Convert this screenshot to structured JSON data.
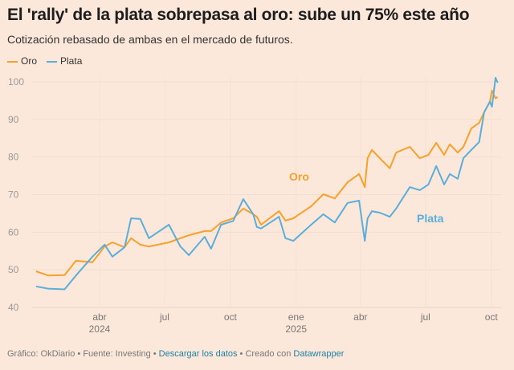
{
  "header": {
    "title": "El 'rally' de la plata sobrepasa al oro: sube un 75% este año",
    "subtitle": "Cotización rebasado de ambas en el mercado de futuros."
  },
  "footer": {
    "source": "Gráfico: OkDiario • Fuente: Investing",
    "sep1": " • ",
    "download": "Descargar los datos",
    "created": " • Creado con ",
    "tool": "Datawrapper"
  },
  "chart_data": {
    "type": "line",
    "title": "El 'rally' de la plata sobrepasa al oro: sube un 75% este año",
    "subtitle": "Cotización rebasado de ambas en el mercado de futuros.",
    "xlabel": "",
    "ylabel": "",
    "xlim": [
      "2024-01-01",
      "2025-10-14"
    ],
    "ylim": [
      40,
      102
    ],
    "yticks": [
      40,
      50,
      60,
      70,
      80,
      90,
      100
    ],
    "xticks": [
      {
        "date": "2024-04-01",
        "label": "abr",
        "year": "2024"
      },
      {
        "date": "2024-07-01",
        "label": "jul",
        "year": ""
      },
      {
        "date": "2024-10-01",
        "label": "oct",
        "year": ""
      },
      {
        "date": "2025-01-01",
        "label": "ene",
        "year": "2025"
      },
      {
        "date": "2025-04-01",
        "label": "abr",
        "year": ""
      },
      {
        "date": "2025-07-01",
        "label": "jul",
        "year": ""
      },
      {
        "date": "2025-10-01",
        "label": "oct",
        "year": ""
      }
    ],
    "grid": true,
    "legend_position": "top-left",
    "x": [
      "2024-01-03",
      "2024-01-20",
      "2024-02-12",
      "2024-02-28",
      "2024-03-22",
      "2024-04-08",
      "2024-04-19",
      "2024-05-06",
      "2024-05-15",
      "2024-05-28",
      "2024-06-09",
      "2024-07-07",
      "2024-07-23",
      "2024-08-04",
      "2024-08-26",
      "2024-09-04",
      "2024-09-18",
      "2024-10-05",
      "2024-10-19",
      "2024-11-02",
      "2024-11-07",
      "2024-11-13",
      "2024-12-08",
      "2024-12-17",
      "2024-12-28",
      "2025-01-22",
      "2025-02-08",
      "2025-02-24",
      "2025-03-14",
      "2025-03-30",
      "2025-04-07",
      "2025-04-11",
      "2025-04-17",
      "2025-04-28",
      "2025-05-12",
      "2025-05-21",
      "2025-06-09",
      "2025-06-23",
      "2025-07-05",
      "2025-07-16",
      "2025-07-27",
      "2025-08-04",
      "2025-08-15",
      "2025-08-23",
      "2025-09-03",
      "2025-09-14",
      "2025-09-21",
      "2025-09-29",
      "2025-10-02",
      "2025-10-07",
      "2025-10-10"
    ],
    "series": [
      {
        "name": "Oro",
        "color": "#f5a12b",
        "values": [
          49.6,
          48.5,
          48.6,
          52.4,
          52.0,
          56.2,
          57.3,
          56.0,
          58.4,
          56.7,
          56.2,
          57.3,
          58.4,
          59.2,
          60.3,
          60.3,
          62.6,
          63.7,
          66.3,
          64.8,
          64.1,
          62.0,
          65.6,
          63.1,
          63.7,
          66.9,
          70.1,
          69.0,
          73.3,
          75.5,
          72.0,
          79.7,
          81.9,
          79.7,
          77.0,
          81.2,
          82.7,
          79.7,
          80.6,
          83.8,
          80.6,
          83.4,
          81.2,
          82.7,
          87.6,
          89.1,
          91.9,
          94.7,
          97.7,
          95.6,
          96.0
        ]
      },
      {
        "name": "Plata",
        "color": "#5aaedb",
        "values": [
          45.6,
          45.0,
          44.8,
          48.5,
          53.5,
          56.7,
          53.5,
          56.0,
          63.7,
          63.5,
          58.4,
          62.0,
          56.2,
          53.9,
          58.8,
          55.6,
          62.0,
          63.0,
          68.8,
          64.8,
          61.4,
          61.0,
          64.1,
          58.4,
          57.7,
          62.0,
          64.8,
          62.6,
          67.8,
          68.4,
          57.7,
          63.7,
          65.6,
          65.2,
          64.1,
          66.3,
          72.0,
          71.2,
          72.7,
          77.6,
          72.7,
          75.5,
          74.2,
          79.7,
          81.9,
          84.0,
          91.9,
          94.7,
          93.4,
          101.1,
          99.8
        ]
      }
    ],
    "annotations": [
      {
        "text": "Oro",
        "series": "Oro"
      },
      {
        "text": "Plata",
        "series": "Plata"
      }
    ]
  }
}
